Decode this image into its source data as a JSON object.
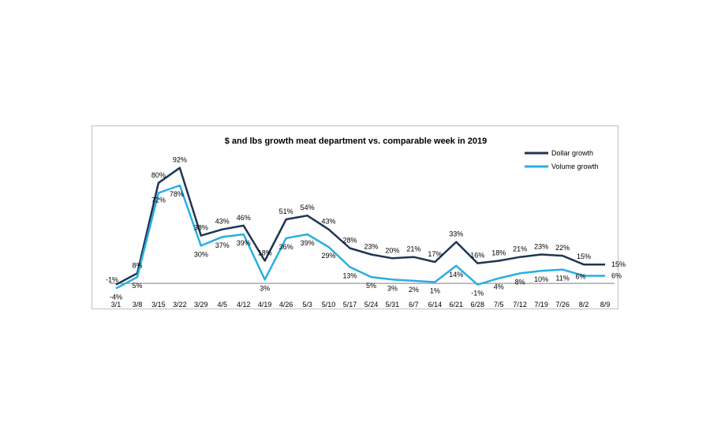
{
  "chart_data": {
    "type": "line",
    "title": "$ and lbs growth meat department vs. comparable week in 2019",
    "xlabel": "",
    "ylabel": "",
    "ylim": [
      -10,
      100
    ],
    "grid": false,
    "legend_position": "top-right",
    "categories": [
      "3/1",
      "3/8",
      "3/15",
      "3/22",
      "3/29",
      "4/5",
      "4/12",
      "4/19",
      "4/26",
      "5/3",
      "5/10",
      "5/17",
      "5/24",
      "5/31",
      "6/7",
      "6/14",
      "6/21",
      "6/28",
      "7/5",
      "7/12",
      "7/19",
      "7/26",
      "8/2",
      "8/9"
    ],
    "series": [
      {
        "name": "Dollar growth",
        "color": "#1f3552",
        "values": [
          -1,
          8,
          80,
          92,
          38,
          43,
          46,
          18,
          51,
          54,
          43,
          28,
          23,
          20,
          21,
          17,
          33,
          16,
          18,
          21,
          23,
          22,
          15,
          15
        ],
        "labels": [
          "-1%",
          "8%",
          "80%",
          "92%",
          "38%",
          "43%",
          "46%",
          "18%",
          "51%",
          "54%",
          "43%",
          "28%",
          "23%",
          "20%",
          "21%",
          "17%",
          "33%",
          "16%",
          "18%",
          "21%",
          "23%",
          "22%",
          "15%",
          "15%"
        ]
      },
      {
        "name": "Volume growth",
        "color": "#29aee3",
        "values": [
          -4,
          5,
          72,
          78,
          30,
          37,
          39,
          3,
          36,
          39,
          29,
          13,
          5,
          3,
          2,
          1,
          14,
          -1,
          4,
          8,
          10,
          11,
          6,
          6
        ],
        "labels": [
          "-4%",
          "5%",
          "72%",
          "78%",
          "30%",
          "37%",
          "39%",
          "3%",
          "36%",
          "39%",
          "29%",
          "13%",
          "5%",
          "3%",
          "2%",
          "1%",
          "14%",
          "-1%",
          "4%",
          "8%",
          "10%",
          "11%",
          "6%",
          "6%"
        ]
      }
    ]
  }
}
